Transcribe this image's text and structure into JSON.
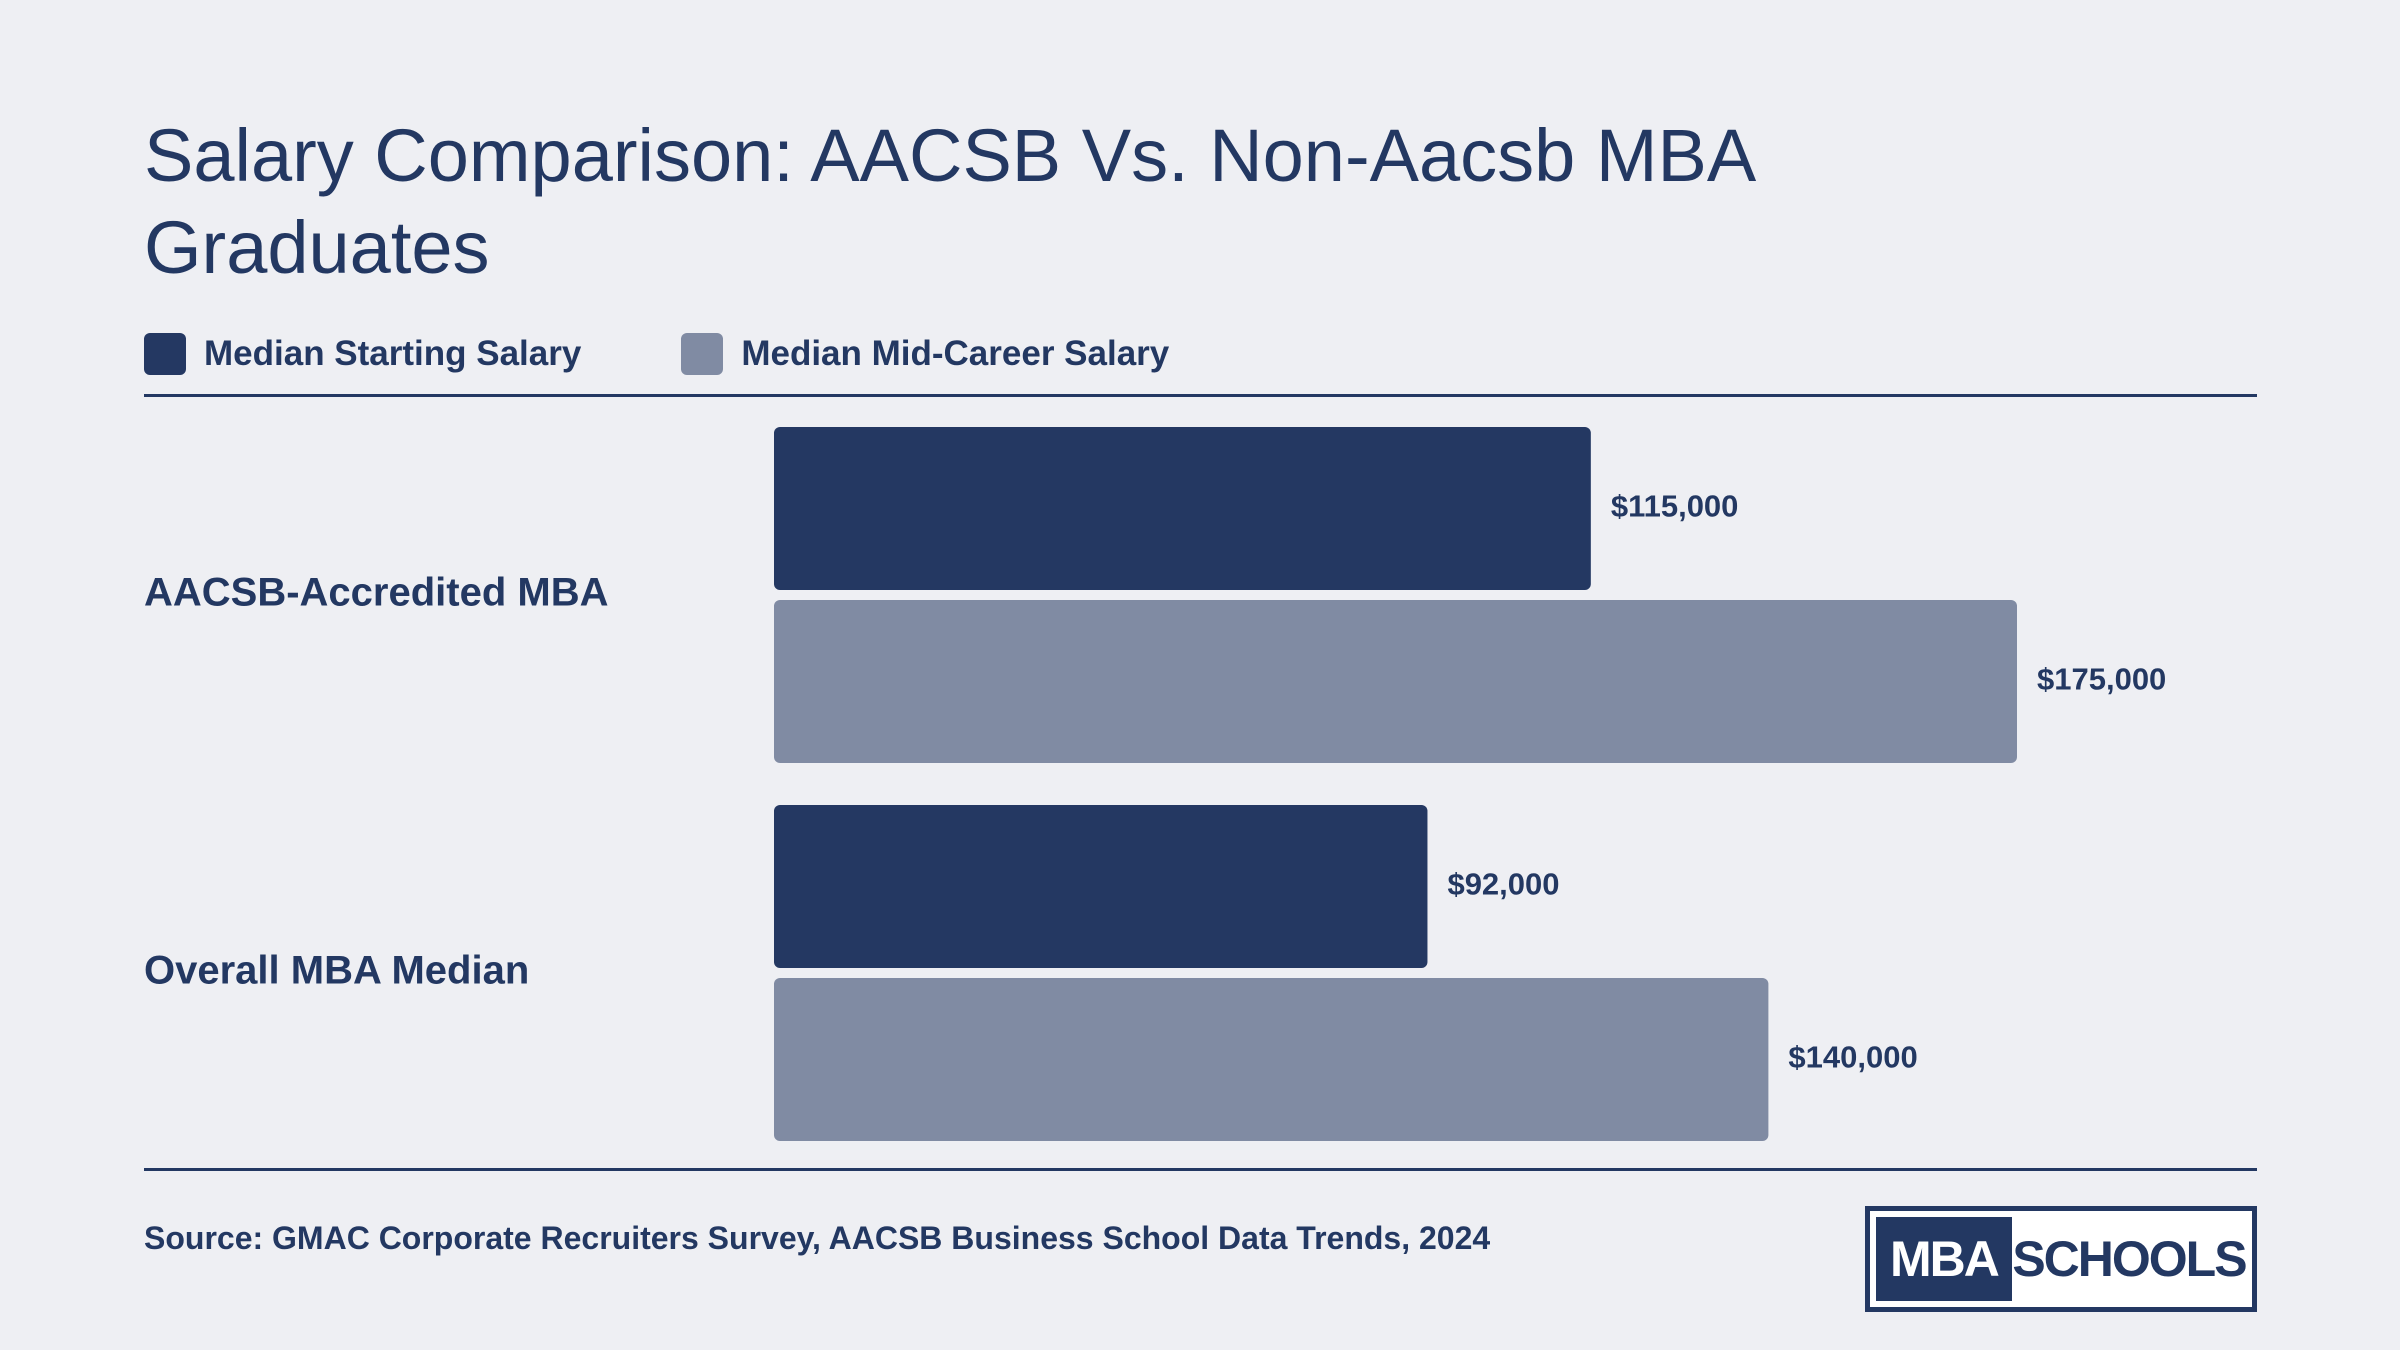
{
  "colors": {
    "background": "#eeeff3",
    "text": "#233862",
    "series_starting": "#243862",
    "series_midcareer": "#808ba3"
  },
  "legend": {
    "items": [
      {
        "label": "Median Starting Salary",
        "color": "#243862"
      },
      {
        "label": "Median Mid-Career Salary",
        "color": "#808ba3"
      }
    ]
  },
  "chart_data": {
    "type": "bar",
    "orientation": "horizontal",
    "title": "Salary Comparison: AACSB Vs. Non-Aacsb MBA Graduates",
    "categories": [
      "AACSB-Accredited MBA",
      "Overall MBA Median"
    ],
    "series": [
      {
        "name": "Median Starting Salary",
        "values": [
          115000,
          92000
        ],
        "labels": [
          "$115,000",
          "$92,000"
        ],
        "color": "#243862"
      },
      {
        "name": "Median Mid-Career Salary",
        "values": [
          175000,
          140000
        ],
        "labels": [
          "$175,000",
          "$140,000"
        ],
        "color": "#808ba3"
      }
    ],
    "xlim": [
      0,
      175000
    ],
    "grid": false,
    "legend_position": "top-left"
  },
  "footer": {
    "source": "Source: GMAC Corporate Recruiters Survey, AACSB Business School Data Trends, 2024",
    "logo": {
      "left_text": "MBA",
      "right_text": "SCHOOLS"
    }
  }
}
